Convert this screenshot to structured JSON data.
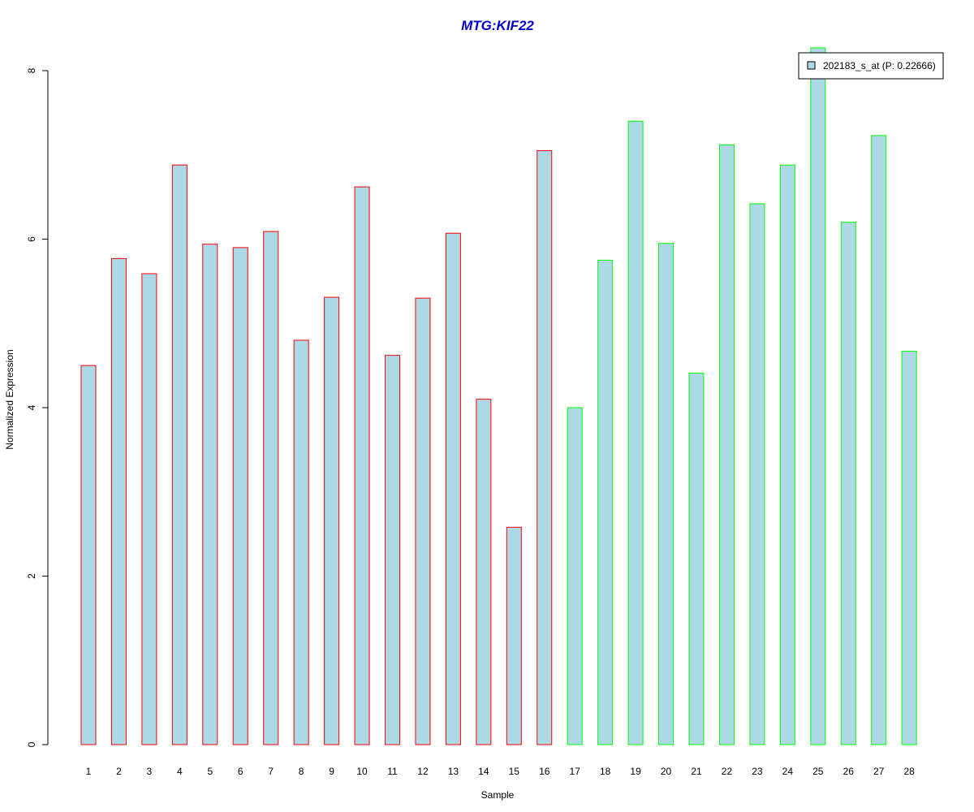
{
  "chart_data": {
    "type": "bar",
    "title": "MTG:KIF22",
    "xlabel": "Sample",
    "ylabel": "Normalized Expression",
    "categories": [
      "1",
      "2",
      "3",
      "4",
      "5",
      "6",
      "7",
      "8",
      "9",
      "10",
      "11",
      "12",
      "13",
      "14",
      "15",
      "16",
      "17",
      "18",
      "19",
      "20",
      "21",
      "22",
      "23",
      "24",
      "25",
      "26",
      "27",
      "28"
    ],
    "series": [
      {
        "name": "202183_s_at (P: 0.22666)",
        "values": [
          4.5,
          5.77,
          5.59,
          6.88,
          5.94,
          5.9,
          6.09,
          4.8,
          5.31,
          6.62,
          4.62,
          5.3,
          6.07,
          4.1,
          2.58,
          7.05,
          4.0,
          5.75,
          7.4,
          5.95,
          4.41,
          7.12,
          6.42,
          6.88,
          8.27,
          6.2,
          7.23,
          4.67
        ]
      }
    ],
    "groups": [
      {
        "samples": [
          1,
          16
        ],
        "border_color": "#ff0000"
      },
      {
        "samples": [
          17,
          28
        ],
        "border_color": "#00ff00"
      }
    ],
    "yticks": [
      0,
      2,
      4,
      6,
      8
    ],
    "ylim": [
      0,
      8
    ],
    "grid": false,
    "legend_position": "top-right",
    "colors": {
      "bar_fill": "#add8e6",
      "title": "#0000cd",
      "axis": "#000000"
    }
  }
}
